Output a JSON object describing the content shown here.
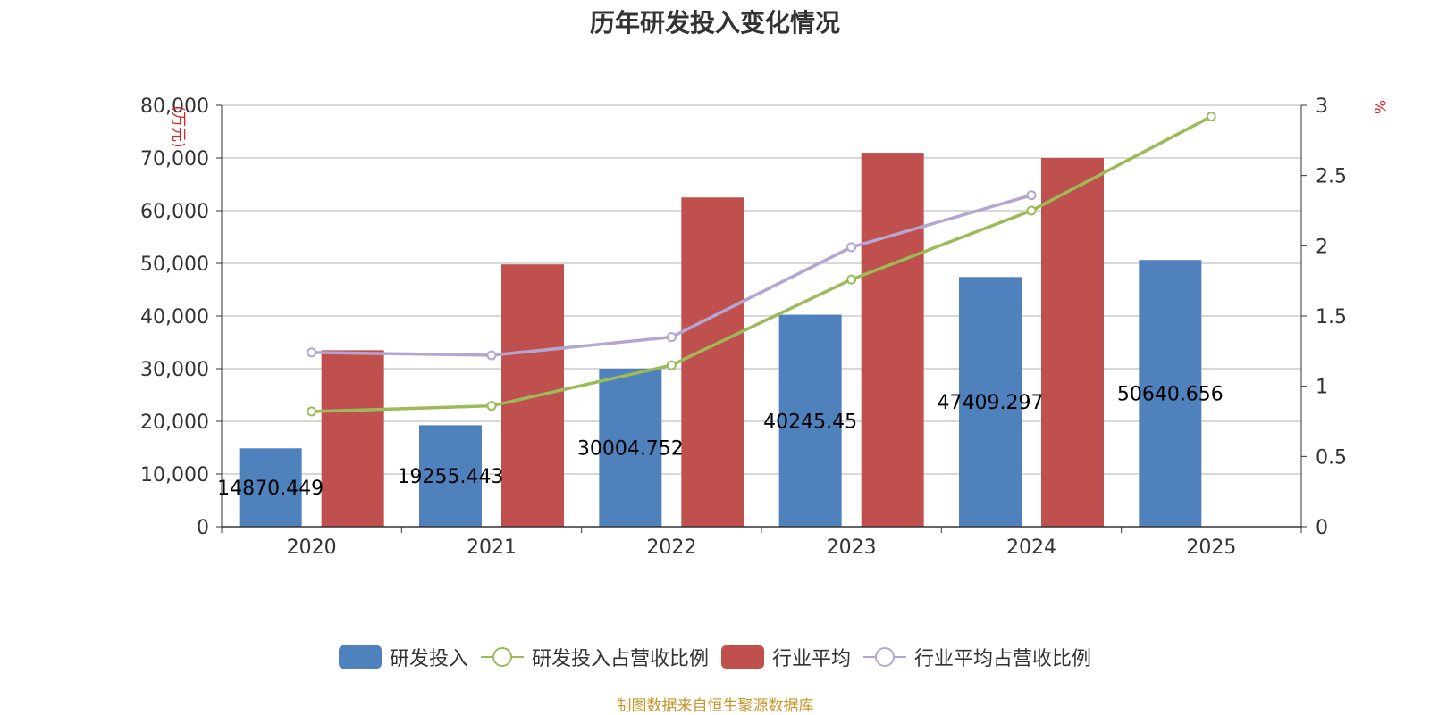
{
  "chart_data": {
    "type": "bar",
    "title": "历年研发投入变化情况",
    "categories": [
      "2020",
      "2021",
      "2022",
      "2023",
      "2024",
      "2025"
    ],
    "y_left": {
      "unit_label": "(万元)",
      "range": [
        0,
        80000
      ],
      "ticks": [
        "0",
        "10,000",
        "20,000",
        "30,000",
        "40,000",
        "50,000",
        "60,000",
        "70,000",
        "80,000"
      ]
    },
    "y_right": {
      "unit_label": "%",
      "range": [
        0,
        3
      ],
      "ticks": [
        "0",
        "0.5",
        "1",
        "1.5",
        "2",
        "2.5",
        "3"
      ]
    },
    "series": [
      {
        "name": "研发投入",
        "type": "bar",
        "axis": "left",
        "color": "#4f81bd",
        "values": [
          14870.449,
          19255.443,
          30004.752,
          40245.45,
          47409.297,
          50640.656
        ],
        "labels": [
          "14870.449",
          "19255.443",
          "30004.752",
          "40245.45",
          "47409.297",
          "50640.656"
        ]
      },
      {
        "name": "研发投入占营收比例",
        "type": "line",
        "axis": "right",
        "color": "#9bbb59",
        "values": [
          0.82,
          0.86,
          1.15,
          1.76,
          2.25,
          2.92
        ]
      },
      {
        "name": "行业平均",
        "type": "bar",
        "axis": "left",
        "color": "#c0504d",
        "values": [
          33500,
          49800,
          62500,
          71000,
          70000,
          null
        ]
      },
      {
        "name": "行业平均占营收比例",
        "type": "line",
        "axis": "right",
        "color": "#b3a6d1",
        "values": [
          1.24,
          1.22,
          1.35,
          1.99,
          2.36,
          null
        ]
      }
    ],
    "grid": true,
    "legend_position": "bottom"
  },
  "source_note": "制图数据来自恒生聚源数据库"
}
